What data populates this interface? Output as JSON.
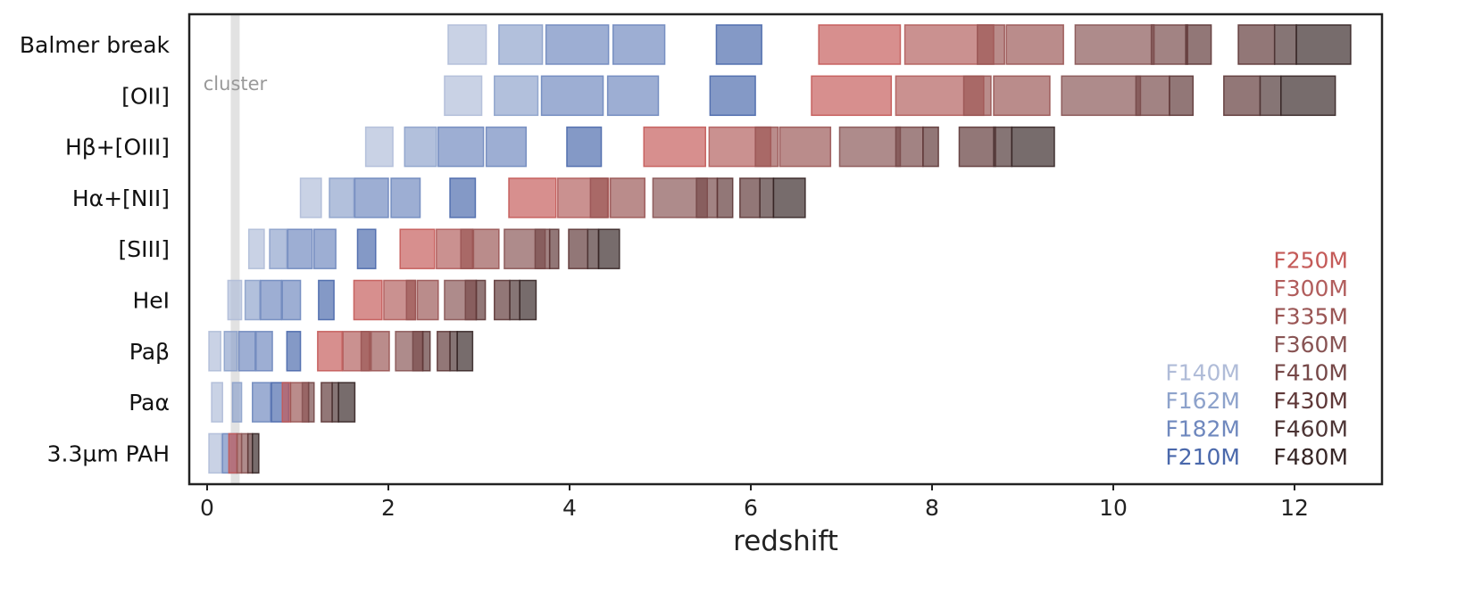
{
  "chart_data": {
    "type": "bar",
    "orientation": "horizontal-range",
    "xlabel": "redshift",
    "xlim": [
      -0.2,
      13.0
    ],
    "xticks": [
      0,
      2,
      4,
      6,
      8,
      10,
      12
    ],
    "xtick_labels": [
      "0",
      "2",
      "4",
      "6",
      "8",
      "10",
      "12"
    ],
    "grid": false,
    "legend_position": "bottom-right",
    "cluster": {
      "label": "cluster",
      "z": 0.31
    },
    "filters": [
      {
        "name": "F140M",
        "color": "#b0bcd8"
      },
      {
        "name": "F162M",
        "color": "#8da2cb"
      },
      {
        "name": "F182M",
        "color": "#6f88be"
      },
      {
        "name": "F210M",
        "color": "#4a68ab"
      },
      {
        "name": "F250M",
        "color": "#c45a58"
      },
      {
        "name": "F300M",
        "color": "#b15d5c"
      },
      {
        "name": "F335M",
        "color": "#9a5554"
      },
      {
        "name": "F360M",
        "color": "#885454"
      },
      {
        "name": "F410M",
        "color": "#764848"
      },
      {
        "name": "F430M",
        "color": "#5e3737"
      },
      {
        "name": "F460M",
        "color": "#4c3434"
      },
      {
        "name": "F480M",
        "color": "#362626"
      }
    ],
    "legend_left": [
      "F140M",
      "F162M",
      "F182M",
      "F210M"
    ],
    "legend_right": [
      "F250M",
      "F300M",
      "F335M",
      "F360M",
      "F410M",
      "F430M",
      "F460M",
      "F480M"
    ],
    "lines": [
      {
        "label": "Balmer break",
        "ranges": [
          [
            2.66,
            3.08
          ],
          [
            3.22,
            3.7
          ],
          [
            3.74,
            4.43
          ],
          [
            4.48,
            5.05
          ],
          [
            5.62,
            6.12
          ],
          [
            6.75,
            7.65
          ],
          [
            7.7,
            8.68
          ],
          [
            8.5,
            8.8
          ],
          [
            8.82,
            9.45
          ],
          [
            9.58,
            10.45
          ],
          [
            10.42,
            10.82
          ],
          [
            10.8,
            11.08
          ],
          [
            11.38,
            11.78
          ],
          [
            11.78,
            12.02
          ],
          [
            12.02,
            12.62
          ]
        ]
      },
      {
        "label": "[OII]",
        "ranges": [
          [
            2.62,
            3.03
          ],
          [
            3.17,
            3.65
          ],
          [
            3.69,
            4.37
          ],
          [
            4.42,
            4.98
          ],
          [
            5.55,
            6.05
          ],
          [
            6.67,
            7.55
          ],
          [
            7.6,
            8.57
          ],
          [
            8.35,
            8.65
          ],
          [
            8.68,
            9.3
          ],
          [
            9.43,
            10.3
          ],
          [
            10.25,
            10.62
          ],
          [
            10.62,
            10.88
          ],
          [
            11.22,
            11.62
          ],
          [
            11.62,
            11.85
          ],
          [
            11.85,
            12.45
          ]
        ]
      },
      {
        "label": "Hβ+[OIII]",
        "ranges": [
          [
            1.75,
            2.05
          ],
          [
            2.18,
            2.53
          ],
          [
            2.55,
            3.05
          ],
          [
            3.08,
            3.52
          ],
          [
            3.97,
            4.35
          ],
          [
            4.82,
            5.5
          ],
          [
            5.54,
            6.22
          ],
          [
            6.05,
            6.3
          ],
          [
            6.32,
            6.88
          ],
          [
            6.98,
            7.65
          ],
          [
            7.6,
            7.9
          ],
          [
            7.9,
            8.07
          ],
          [
            8.3,
            8.7
          ],
          [
            8.68,
            8.88
          ],
          [
            8.88,
            9.35
          ]
        ]
      },
      {
        "label": "Hα+[NII]",
        "ranges": [
          [
            1.03,
            1.26
          ],
          [
            1.35,
            1.62
          ],
          [
            1.63,
            2.0
          ],
          [
            2.03,
            2.35
          ],
          [
            2.68,
            2.96
          ],
          [
            3.33,
            3.85
          ],
          [
            3.87,
            4.43
          ],
          [
            4.23,
            4.42
          ],
          [
            4.45,
            4.83
          ],
          [
            4.92,
            5.52
          ],
          [
            5.4,
            5.63
          ],
          [
            5.63,
            5.8
          ],
          [
            5.88,
            6.1
          ],
          [
            6.1,
            6.25
          ],
          [
            6.25,
            6.6
          ]
        ]
      },
      {
        "label": "[SIII]",
        "ranges": [
          [
            0.46,
            0.63
          ],
          [
            0.69,
            0.88
          ],
          [
            0.89,
            1.16
          ],
          [
            1.18,
            1.42
          ],
          [
            1.66,
            1.86
          ],
          [
            2.13,
            2.51
          ],
          [
            2.53,
            2.93
          ],
          [
            2.8,
            2.93
          ],
          [
            2.94,
            3.22
          ],
          [
            3.28,
            3.73
          ],
          [
            3.62,
            3.78
          ],
          [
            3.78,
            3.88
          ],
          [
            3.99,
            4.2
          ],
          [
            4.2,
            4.32
          ],
          [
            4.32,
            4.55
          ]
        ]
      },
      {
        "label": "HeI",
        "ranges": [
          [
            0.23,
            0.38
          ],
          [
            0.42,
            0.58
          ],
          [
            0.59,
            0.82
          ],
          [
            0.83,
            1.03
          ],
          [
            1.23,
            1.4
          ],
          [
            1.62,
            1.93
          ],
          [
            1.95,
            2.3
          ],
          [
            2.2,
            2.3
          ],
          [
            2.32,
            2.55
          ],
          [
            2.62,
            2.97
          ],
          [
            2.85,
            2.97
          ],
          [
            2.97,
            3.07
          ],
          [
            3.17,
            3.34
          ],
          [
            3.34,
            3.45
          ],
          [
            3.45,
            3.63
          ]
        ]
      },
      {
        "label": "Paβ",
        "ranges": [
          [
            0.02,
            0.15
          ],
          [
            0.19,
            0.33
          ],
          [
            0.35,
            0.53
          ],
          [
            0.54,
            0.72
          ],
          [
            0.88,
            1.03
          ],
          [
            1.22,
            1.49
          ],
          [
            1.5,
            1.79
          ],
          [
            1.7,
            1.8
          ],
          [
            1.81,
            2.01
          ],
          [
            2.08,
            2.38
          ],
          [
            2.27,
            2.38
          ],
          [
            2.38,
            2.46
          ],
          [
            2.54,
            2.68
          ],
          [
            2.68,
            2.76
          ],
          [
            2.76,
            2.93
          ]
        ]
      },
      {
        "label": "Paα",
        "ranges": [
          [
            0.05,
            0.17
          ],
          [
            0.28,
            0.38
          ],
          [
            0.5,
            0.7
          ],
          [
            0.71,
            0.9
          ],
          [
            0.83,
            0.92
          ],
          [
            0.92,
            1.12
          ],
          [
            1.05,
            1.12
          ],
          [
            1.12,
            1.18
          ],
          [
            1.26,
            1.38
          ],
          [
            1.38,
            1.45
          ],
          [
            1.45,
            1.63
          ]
        ]
      },
      {
        "label": "3.3µm PAH",
        "ranges": [
          [
            0.02,
            0.16
          ],
          [
            0.17,
            0.33
          ],
          [
            0.24,
            0.33
          ],
          [
            0.33,
            0.38
          ],
          [
            0.38,
            0.45
          ],
          [
            0.45,
            0.5
          ],
          [
            0.5,
            0.57
          ]
        ]
      }
    ]
  }
}
